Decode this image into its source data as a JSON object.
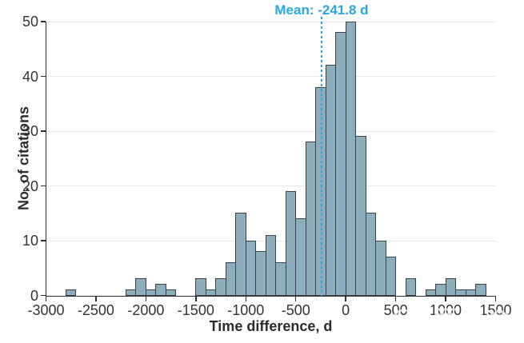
{
  "chart_data": {
    "type": "bar",
    "subtype": "histogram",
    "title": "Mean: -241.8 d",
    "xlabel": "Time difference, d",
    "ylabel": "No. of citations",
    "xlim": [
      -3000,
      1500
    ],
    "ylim": [
      0,
      50
    ],
    "x_ticks": [
      -3000,
      -2500,
      -2000,
      -1500,
      -1000,
      -500,
      0,
      500,
      1000,
      1500
    ],
    "y_ticks": [
      0,
      10,
      20,
      30,
      40,
      50
    ],
    "grid": "horizontal",
    "legend": "none",
    "mean": -241.8,
    "mean_label": "Mean: -241.8 d",
    "bin_width": 100,
    "bins": [
      {
        "start": -2800,
        "count": 1
      },
      {
        "start": -2200,
        "count": 1
      },
      {
        "start": -2100,
        "count": 3
      },
      {
        "start": -2000,
        "count": 1
      },
      {
        "start": -1900,
        "count": 2
      },
      {
        "start": -1800,
        "count": 1
      },
      {
        "start": -1500,
        "count": 3
      },
      {
        "start": -1400,
        "count": 1
      },
      {
        "start": -1300,
        "count": 3
      },
      {
        "start": -1200,
        "count": 6
      },
      {
        "start": -1100,
        "count": 15
      },
      {
        "start": -1000,
        "count": 10
      },
      {
        "start": -900,
        "count": 8
      },
      {
        "start": -800,
        "count": 11
      },
      {
        "start": -700,
        "count": 6
      },
      {
        "start": -600,
        "count": 19
      },
      {
        "start": -500,
        "count": 14
      },
      {
        "start": -400,
        "count": 28
      },
      {
        "start": -300,
        "count": 38
      },
      {
        "start": -200,
        "count": 42
      },
      {
        "start": -100,
        "count": 48
      },
      {
        "start": 0,
        "count": 50
      },
      {
        "start": 100,
        "count": 29
      },
      {
        "start": 200,
        "count": 15
      },
      {
        "start": 300,
        "count": 10
      },
      {
        "start": 400,
        "count": 7
      },
      {
        "start": 600,
        "count": 3
      },
      {
        "start": 800,
        "count": 1
      },
      {
        "start": 900,
        "count": 2
      },
      {
        "start": 1000,
        "count": 3
      },
      {
        "start": 1100,
        "count": 1
      },
      {
        "start": 1200,
        "count": 1
      },
      {
        "start": 1300,
        "count": 2
      }
    ]
  },
  "watermark": {
    "logo_icon": "medieco-logo-icon",
    "cn_text": "医咖会",
    "en_text": "MEDIECO GROUP"
  },
  "colors": {
    "bar_fill": "#8cadbc",
    "bar_stroke": "#3c4247",
    "axis": "#2e2e2e",
    "grid": "#e8e8e8",
    "accent": "#29a8e0",
    "text": "#333333"
  }
}
